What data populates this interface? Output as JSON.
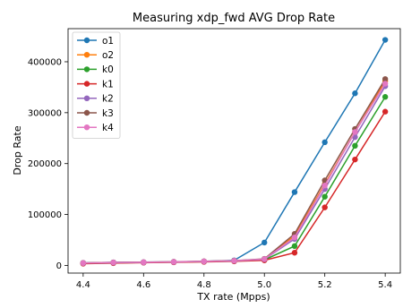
{
  "chart_data": {
    "type": "line",
    "title": "Measuring xdp_fwd AVG Drop Rate",
    "xlabel": "TX rate (Mpps)",
    "ylabel": "Drop Rate",
    "x": [
      4.4,
      4.5,
      4.6,
      4.7,
      4.8,
      4.9,
      5.0,
      5.1,
      5.2,
      5.3,
      5.4
    ],
    "xlim": [
      4.35,
      5.45
    ],
    "ylim": [
      -15000,
      465000
    ],
    "xticks": [
      4.4,
      4.6,
      4.8,
      5.0,
      5.2,
      5.4
    ],
    "xtick_labels": [
      "4.4",
      "4.6",
      "4.8",
      "5.0",
      "5.2",
      "5.4"
    ],
    "yticks": [
      0,
      100000,
      200000,
      300000,
      400000
    ],
    "ytick_labels": [
      "0",
      "100000",
      "200000",
      "300000",
      "400000"
    ],
    "grid": false,
    "legend_position": "top-left",
    "series": [
      {
        "name": "o1",
        "color": "#1f77b4",
        "values": [
          5000,
          6000,
          6500,
          7000,
          8000,
          10000,
          45000,
          144000,
          242000,
          338000,
          443000
        ]
      },
      {
        "name": "o2",
        "color": "#ff7f0e",
        "values": [
          4500,
          5500,
          6000,
          6800,
          7800,
          9000,
          12000,
          58000,
          160000,
          262000,
          362000
        ]
      },
      {
        "name": "k0",
        "color": "#2ca02c",
        "values": [
          4000,
          5000,
          5800,
          6500,
          7500,
          8500,
          11000,
          38000,
          135000,
          235000,
          331000
        ]
      },
      {
        "name": "k1",
        "color": "#d62728",
        "values": [
          3500,
          4500,
          5500,
          6200,
          7000,
          8000,
          10000,
          25000,
          114000,
          208000,
          302000
        ]
      },
      {
        "name": "k2",
        "color": "#9467bd",
        "values": [
          4500,
          5500,
          6000,
          6800,
          7800,
          9000,
          12000,
          52000,
          150000,
          252000,
          352000
        ]
      },
      {
        "name": "k3",
        "color": "#8c564b",
        "values": [
          5000,
          6000,
          6500,
          7200,
          8200,
          9500,
          13000,
          62000,
          167000,
          268000,
          366000
        ]
      },
      {
        "name": "k4",
        "color": "#e377c2",
        "values": [
          4800,
          5800,
          6300,
          7000,
          8000,
          9200,
          12500,
          55000,
          157000,
          262000,
          357000
        ]
      }
    ]
  }
}
